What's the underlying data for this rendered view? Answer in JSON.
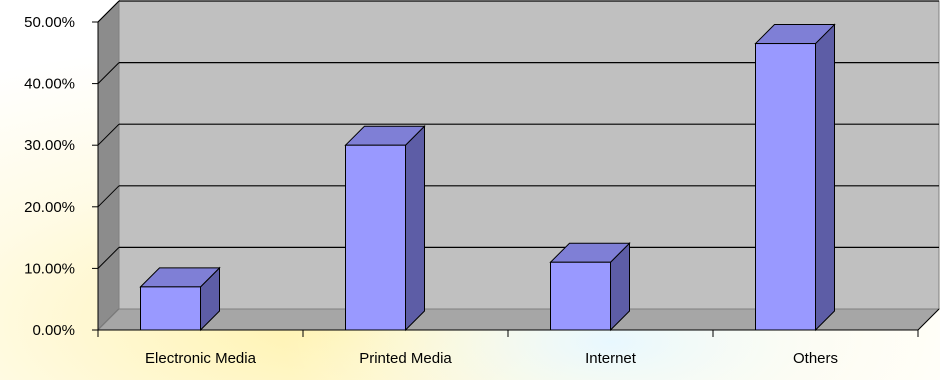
{
  "chart_data": {
    "type": "bar",
    "style": "3d-column",
    "categories": [
      "Electronic Media",
      "Printed Media",
      "Internet",
      "Others"
    ],
    "values": [
      7.0,
      30.0,
      11.0,
      46.5
    ],
    "unit": "%",
    "ylim": [
      0,
      50
    ],
    "yticks": [
      "0.00%",
      "10.00%",
      "20.00%",
      "30.00%",
      "40.00%",
      "50.00%"
    ],
    "grid": true,
    "legend": "none",
    "title": "",
    "xlabel": "",
    "ylabel": ""
  },
  "colors": {
    "bar_front": "#9999FF",
    "bar_side": "#5D5DA6",
    "bar_top": "#7F7FD6",
    "back_wall": "#C0C0C0",
    "side_wall": "#8C8C8C",
    "floor": "#A6A6A6",
    "grid_line": "#000000",
    "background_glow": "#FFF7C2"
  }
}
